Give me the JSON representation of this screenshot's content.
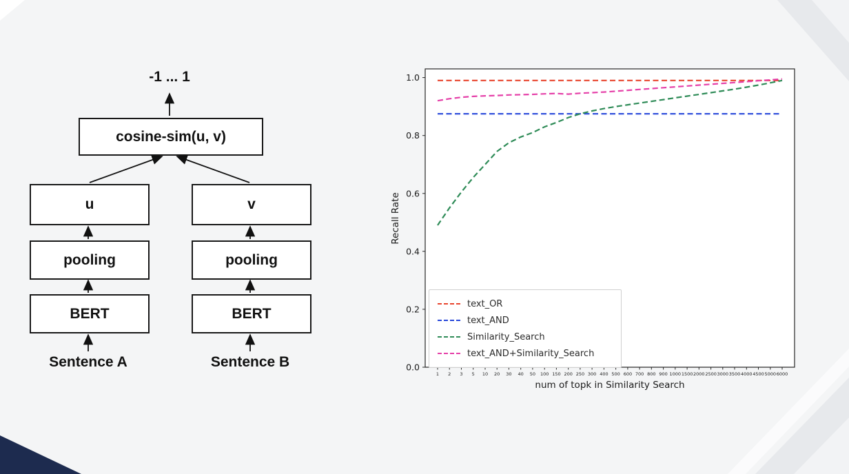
{
  "page": {
    "background": "#f4f5f6",
    "accent_navy": "#1d2b4f",
    "decor_gray": "#e7e9ec",
    "decor_gray_light": "#f2f3f5"
  },
  "diagram": {
    "output_label": "-1 ... 1",
    "cosine_box": "cosine-sim(u, v)",
    "u_box": "u",
    "v_box": "v",
    "pooling_left": "pooling",
    "pooling_right": "pooling",
    "bert_left": "BERT",
    "bert_right": "BERT",
    "sentence_a": "Sentence A",
    "sentence_b": "Sentence B"
  },
  "chart_data": {
    "type": "line",
    "title": "",
    "xlabel": "num of topk in Similarity Search",
    "ylabel": "Recall Rate",
    "ylim": [
      0.0,
      1.03
    ],
    "yticks": [
      0.0,
      0.2,
      0.4,
      0.6,
      0.8,
      1.0
    ],
    "grid": false,
    "line_style": "dashed",
    "legend_position": "lower left",
    "categories": [
      "1",
      "2",
      "3",
      "5",
      "10",
      "20",
      "30",
      "40",
      "50",
      "100",
      "150",
      "200",
      "250",
      "300",
      "400",
      "500",
      "600",
      "700",
      "800",
      "900",
      "1000",
      "1500",
      "2000",
      "2500",
      "3000",
      "3500",
      "4000",
      "4500",
      "5000",
      "6000"
    ],
    "series": [
      {
        "name": "text_OR",
        "color": "#e8432c",
        "values": [
          0.99,
          0.99,
          0.99,
          0.99,
          0.99,
          0.99,
          0.99,
          0.99,
          0.99,
          0.99,
          0.99,
          0.99,
          0.99,
          0.99,
          0.99,
          0.99,
          0.99,
          0.99,
          0.99,
          0.99,
          0.99,
          0.99,
          0.99,
          0.99,
          0.99,
          0.99,
          0.99,
          0.99,
          0.99,
          0.99
        ]
      },
      {
        "name": "text_AND",
        "color": "#2545d9",
        "values": [
          0.875,
          0.875,
          0.875,
          0.875,
          0.875,
          0.875,
          0.875,
          0.875,
          0.875,
          0.875,
          0.875,
          0.875,
          0.875,
          0.875,
          0.875,
          0.875,
          0.875,
          0.875,
          0.875,
          0.875,
          0.875,
          0.875,
          0.875,
          0.875,
          0.875,
          0.875,
          0.875,
          0.875,
          0.875,
          0.875
        ]
      },
      {
        "name": "Similarity_Search",
        "color": "#2e8b57",
        "values": [
          0.49,
          0.55,
          0.605,
          0.655,
          0.7,
          0.745,
          0.775,
          0.795,
          0.81,
          0.83,
          0.845,
          0.862,
          0.875,
          0.885,
          0.893,
          0.9,
          0.906,
          0.912,
          0.918,
          0.924,
          0.93,
          0.936,
          0.942,
          0.948,
          0.954,
          0.96,
          0.967,
          0.974,
          0.982,
          0.99
        ]
      },
      {
        "name": "text_AND+Similarity_Search",
        "color": "#e53fa8",
        "values": [
          0.92,
          0.927,
          0.932,
          0.935,
          0.937,
          0.938,
          0.94,
          0.941,
          0.942,
          0.944,
          0.945,
          0.943,
          0.946,
          0.948,
          0.95,
          0.953,
          0.956,
          0.959,
          0.962,
          0.965,
          0.968,
          0.971,
          0.974,
          0.977,
          0.98,
          0.983,
          0.986,
          0.989,
          0.992,
          0.995
        ]
      }
    ]
  }
}
